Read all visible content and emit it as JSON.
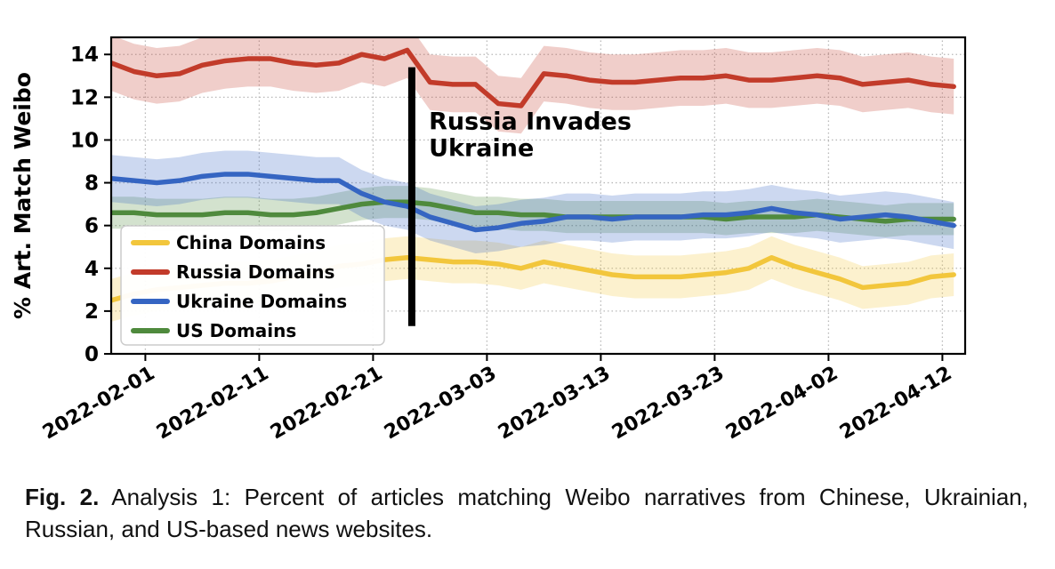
{
  "figure": {
    "caption_label": "Fig. 2.",
    "caption_text": "Analysis 1: Percent of articles matching Weibo narratives from Chinese, Ukrainian, Russian, and US-based news websites."
  },
  "chart_data": {
    "type": "line",
    "title": "",
    "xlabel": "",
    "ylabel": "% Art. Match Weibo",
    "ylim": [
      0,
      14.8
    ],
    "xlim_days": [
      0,
      75
    ],
    "grid": "dotted",
    "grid_color": "#b8b8b8",
    "legend_position": "lower-left",
    "yticks": [
      0,
      2,
      4,
      6,
      8,
      10,
      12,
      14
    ],
    "xticks": [
      {
        "day": 3,
        "label": "2022-02-01"
      },
      {
        "day": 13,
        "label": "2022-02-11"
      },
      {
        "day": 23,
        "label": "2022-02-21"
      },
      {
        "day": 33,
        "label": "2022-03-03"
      },
      {
        "day": 43,
        "label": "2022-03-13"
      },
      {
        "day": 53,
        "label": "2022-03-23"
      },
      {
        "day": 63,
        "label": "2022-04-02"
      },
      {
        "day": 73,
        "label": "2022-04-12"
      }
    ],
    "x_days": [
      0,
      2,
      4,
      6,
      8,
      10,
      12,
      14,
      16,
      18,
      20,
      22,
      24,
      26,
      28,
      30,
      32,
      34,
      36,
      38,
      40,
      42,
      44,
      46,
      48,
      50,
      52,
      54,
      56,
      58,
      60,
      62,
      64,
      66,
      68,
      70,
      72,
      74
    ],
    "series": [
      {
        "name": "China Domains",
        "color": "#F2C63C",
        "band": 1.0,
        "values": [
          2.5,
          2.8,
          3.0,
          3.1,
          3.2,
          3.3,
          3.3,
          3.4,
          3.6,
          3.8,
          4.1,
          4.2,
          4.4,
          4.5,
          4.4,
          4.3,
          4.3,
          4.2,
          4.0,
          4.3,
          4.1,
          3.9,
          3.7,
          3.6,
          3.6,
          3.6,
          3.7,
          3.8,
          4.0,
          4.5,
          4.1,
          3.8,
          3.5,
          3.1,
          3.2,
          3.3,
          3.6,
          3.7
        ]
      },
      {
        "name": "Russia Domains",
        "color": "#C23B2A",
        "band": 1.3,
        "values": [
          13.6,
          13.2,
          13.0,
          13.1,
          13.5,
          13.7,
          13.8,
          13.8,
          13.6,
          13.5,
          13.6,
          14.0,
          13.8,
          14.2,
          12.7,
          12.6,
          12.6,
          11.7,
          11.6,
          13.1,
          13.0,
          12.8,
          12.7,
          12.7,
          12.8,
          12.9,
          12.9,
          13.0,
          12.8,
          12.8,
          12.9,
          13.0,
          12.9,
          12.6,
          12.7,
          12.8,
          12.6,
          12.5
        ]
      },
      {
        "name": "Ukraine Domains",
        "color": "#3565C2",
        "band": 1.1,
        "values": [
          8.2,
          8.1,
          8.0,
          8.1,
          8.3,
          8.4,
          8.4,
          8.3,
          8.2,
          8.1,
          8.1,
          7.5,
          7.1,
          6.9,
          6.4,
          6.1,
          5.8,
          5.9,
          6.1,
          6.2,
          6.4,
          6.4,
          6.3,
          6.4,
          6.4,
          6.4,
          6.5,
          6.5,
          6.6,
          6.8,
          6.6,
          6.5,
          6.3,
          6.4,
          6.5,
          6.4,
          6.2,
          6.0
        ]
      },
      {
        "name": "US Domains",
        "color": "#4F8A3D",
        "band": 0.75,
        "values": [
          6.6,
          6.6,
          6.5,
          6.5,
          6.5,
          6.6,
          6.6,
          6.5,
          6.5,
          6.6,
          6.8,
          7.0,
          7.1,
          7.1,
          7.0,
          6.8,
          6.6,
          6.6,
          6.5,
          6.5,
          6.4,
          6.4,
          6.4,
          6.4,
          6.4,
          6.4,
          6.4,
          6.3,
          6.4,
          6.4,
          6.4,
          6.5,
          6.4,
          6.3,
          6.2,
          6.3,
          6.3,
          6.3
        ]
      }
    ],
    "annotation": {
      "text_line1": "Russia Invades",
      "text_line2": "Ukraine",
      "line_day": 26.4,
      "line_y_range": [
        1.3,
        13.4
      ],
      "text_day": 27.9,
      "text_y_line1": 10.5,
      "text_y_line2": 9.25,
      "line_color": "#000000"
    }
  }
}
